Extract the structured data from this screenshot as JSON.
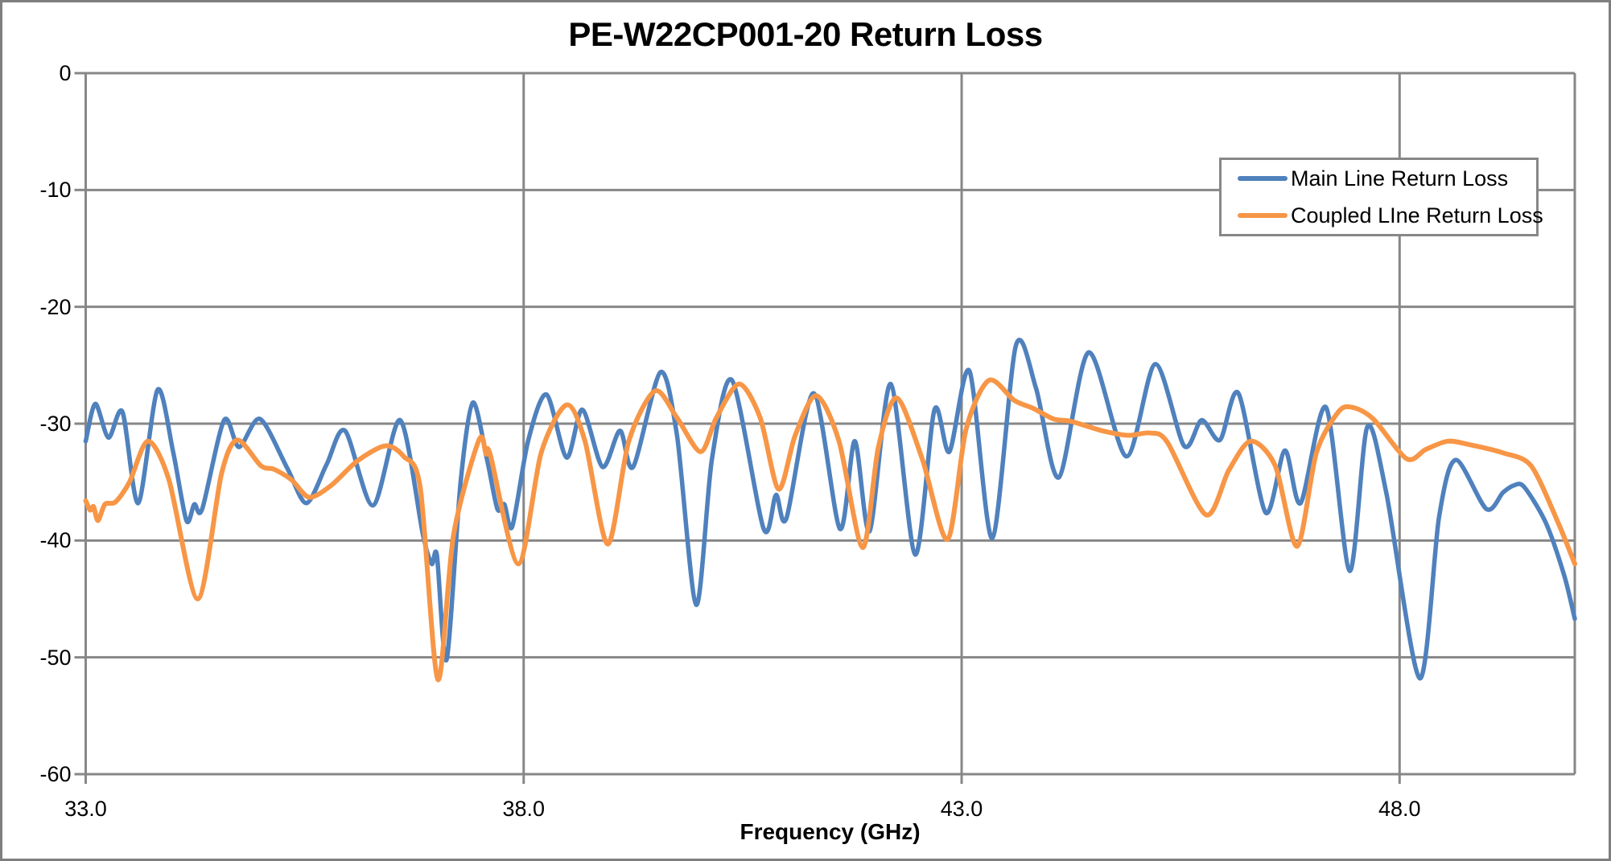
{
  "title": "PE-W22CP001-20 Return Loss",
  "colors": {
    "main_line": "#4F81BD",
    "coupled_line": "#F79646",
    "gridline": "#878787",
    "outer_border": "#7F7F7F",
    "text": "#000000",
    "background": "#FFFFFF"
  },
  "axes": {
    "x_label": "Frequency (GHz)",
    "x_ticks": [
      {
        "label": "33.0",
        "value": 33.0
      },
      {
        "label": "38.0",
        "value": 38.0
      },
      {
        "label": "43.0",
        "value": 43.0
      },
      {
        "label": "48.0",
        "value": 48.0
      }
    ],
    "y_ticks": [
      {
        "label": "0",
        "value": 0
      },
      {
        "label": "-10",
        "value": -10
      },
      {
        "label": "-20",
        "value": -20
      },
      {
        "label": "-30",
        "value": -30
      },
      {
        "label": "-40",
        "value": -40
      },
      {
        "label": "-50",
        "value": -50
      },
      {
        "label": "-60",
        "value": -60
      }
    ]
  },
  "legend": {
    "entries": [
      {
        "label": "Main Line Return Loss",
        "series": "main_line"
      },
      {
        "label": "Coupled LIne Return Loss",
        "series": "coupled_line"
      }
    ]
  },
  "chart_data": {
    "type": "line",
    "title": "PE-W22CP001-20 Return Loss",
    "xlabel": "Frequency (GHz)",
    "ylabel": "",
    "x_range": [
      33.0,
      50.0
    ],
    "ylim": [
      -60,
      0
    ],
    "x_major_step": 5.0,
    "y_major_step": 10,
    "grid": true,
    "legend_position": "top-right-inside",
    "x_units": "GHz",
    "y_units": "dB",
    "series": [
      {
        "name": "Main Line Return Loss",
        "color_key": "main_line",
        "stroke_width": 5.5,
        "points": [
          [
            33.0,
            -31.5
          ],
          [
            33.11,
            -28.3
          ],
          [
            33.26,
            -31.2
          ],
          [
            33.42,
            -29.0
          ],
          [
            33.6,
            -36.8
          ],
          [
            33.82,
            -27.1
          ],
          [
            34.0,
            -32.5
          ],
          [
            34.15,
            -38.3
          ],
          [
            34.24,
            -36.9
          ],
          [
            34.33,
            -37.3
          ],
          [
            34.58,
            -29.7
          ],
          [
            34.75,
            -32.0
          ],
          [
            34.99,
            -29.6
          ],
          [
            35.3,
            -33.8
          ],
          [
            35.52,
            -36.8
          ],
          [
            35.75,
            -33.5
          ],
          [
            35.96,
            -30.6
          ],
          [
            36.28,
            -37.0
          ],
          [
            36.59,
            -29.7
          ],
          [
            36.85,
            -39.5
          ],
          [
            36.95,
            -42.0
          ],
          [
            37.01,
            -41.3
          ],
          [
            37.12,
            -50.2
          ],
          [
            37.28,
            -35.0
          ],
          [
            37.42,
            -28.2
          ],
          [
            37.58,
            -33.0
          ],
          [
            37.7,
            -37.3
          ],
          [
            37.78,
            -36.9
          ],
          [
            37.87,
            -38.8
          ],
          [
            38.05,
            -31.5
          ],
          [
            38.26,
            -27.5
          ],
          [
            38.49,
            -32.9
          ],
          [
            38.67,
            -28.8
          ],
          [
            38.9,
            -33.7
          ],
          [
            39.1,
            -30.6
          ],
          [
            39.25,
            -33.7
          ],
          [
            39.56,
            -25.6
          ],
          [
            39.75,
            -31.0
          ],
          [
            39.97,
            -45.5
          ],
          [
            40.15,
            -33.0
          ],
          [
            40.38,
            -26.3
          ],
          [
            40.74,
            -39.0
          ],
          [
            40.88,
            -36.1
          ],
          [
            41.0,
            -38.1
          ],
          [
            41.31,
            -27.4
          ],
          [
            41.61,
            -39.0
          ],
          [
            41.78,
            -31.5
          ],
          [
            41.95,
            -39.2
          ],
          [
            42.19,
            -26.6
          ],
          [
            42.47,
            -41.2
          ],
          [
            42.69,
            -28.8
          ],
          [
            42.86,
            -32.4
          ],
          [
            43.09,
            -25.5
          ],
          [
            43.35,
            -39.8
          ],
          [
            43.62,
            -23.3
          ],
          [
            43.85,
            -27.0
          ],
          [
            44.11,
            -34.6
          ],
          [
            44.45,
            -23.9
          ],
          [
            44.88,
            -32.8
          ],
          [
            45.21,
            -24.9
          ],
          [
            45.54,
            -31.9
          ],
          [
            45.74,
            -29.7
          ],
          [
            45.95,
            -31.4
          ],
          [
            46.16,
            -27.4
          ],
          [
            46.47,
            -37.6
          ],
          [
            46.69,
            -32.3
          ],
          [
            46.87,
            -36.8
          ],
          [
            47.16,
            -28.6
          ],
          [
            47.43,
            -42.6
          ],
          [
            47.63,
            -30.3
          ],
          [
            47.85,
            -36.0
          ],
          [
            48.23,
            -51.8
          ],
          [
            48.45,
            -38.0
          ],
          [
            48.64,
            -33.1
          ],
          [
            48.99,
            -37.3
          ],
          [
            49.18,
            -35.9
          ],
          [
            49.3,
            -35.3
          ],
          [
            49.42,
            -35.4
          ],
          [
            49.67,
            -38.5
          ],
          [
            49.88,
            -43.0
          ],
          [
            50.0,
            -46.7
          ]
        ]
      },
      {
        "name": "Coupled LIne Return Loss",
        "color_key": "coupled_line",
        "stroke_width": 6,
        "points": [
          [
            33.0,
            -36.6
          ],
          [
            33.05,
            -37.4
          ],
          [
            33.09,
            -37.1
          ],
          [
            33.14,
            -38.3
          ],
          [
            33.22,
            -36.9
          ],
          [
            33.34,
            -36.7
          ],
          [
            33.5,
            -35.0
          ],
          [
            33.71,
            -31.5
          ],
          [
            33.95,
            -34.8
          ],
          [
            34.28,
            -45.0
          ],
          [
            34.55,
            -34.3
          ],
          [
            34.73,
            -31.4
          ],
          [
            35.0,
            -33.6
          ],
          [
            35.15,
            -33.9
          ],
          [
            35.35,
            -34.8
          ],
          [
            35.55,
            -36.3
          ],
          [
            35.8,
            -35.3
          ],
          [
            36.1,
            -33.2
          ],
          [
            36.42,
            -31.9
          ],
          [
            36.63,
            -32.8
          ],
          [
            36.82,
            -35.5
          ],
          [
            37.02,
            -51.9
          ],
          [
            37.2,
            -39.5
          ],
          [
            37.49,
            -31.4
          ],
          [
            37.57,
            -32.6
          ],
          [
            37.62,
            -32.7
          ],
          [
            37.94,
            -42.0
          ],
          [
            38.2,
            -32.5
          ],
          [
            38.49,
            -28.4
          ],
          [
            38.7,
            -31.5
          ],
          [
            38.96,
            -40.3
          ],
          [
            39.2,
            -31.5
          ],
          [
            39.5,
            -27.2
          ],
          [
            39.75,
            -29.5
          ],
          [
            40.02,
            -32.4
          ],
          [
            40.2,
            -29.5
          ],
          [
            40.46,
            -26.6
          ],
          [
            40.7,
            -29.5
          ],
          [
            40.91,
            -35.6
          ],
          [
            41.1,
            -31.0
          ],
          [
            41.34,
            -27.6
          ],
          [
            41.6,
            -31.5
          ],
          [
            41.87,
            -40.6
          ],
          [
            42.05,
            -32.0
          ],
          [
            42.26,
            -27.8
          ],
          [
            42.55,
            -33.0
          ],
          [
            42.84,
            -39.9
          ],
          [
            43.05,
            -30.5
          ],
          [
            43.31,
            -26.3
          ],
          [
            43.6,
            -28.0
          ],
          [
            43.82,
            -28.7
          ],
          [
            44.05,
            -29.6
          ],
          [
            44.25,
            -29.8
          ],
          [
            44.6,
            -30.6
          ],
          [
            44.9,
            -31.0
          ],
          [
            45.15,
            -30.8
          ],
          [
            45.35,
            -31.6
          ],
          [
            45.79,
            -37.8
          ],
          [
            46.05,
            -34.0
          ],
          [
            46.3,
            -31.5
          ],
          [
            46.58,
            -33.6
          ],
          [
            46.83,
            -40.5
          ],
          [
            47.05,
            -32.5
          ],
          [
            47.3,
            -29.0
          ],
          [
            47.46,
            -28.6
          ],
          [
            47.7,
            -29.6
          ],
          [
            48.08,
            -33.0
          ],
          [
            48.3,
            -32.2
          ],
          [
            48.55,
            -31.5
          ],
          [
            48.8,
            -31.8
          ],
          [
            49.18,
            -32.5
          ],
          [
            49.5,
            -33.6
          ],
          [
            49.8,
            -38.3
          ],
          [
            50.0,
            -42.0
          ]
        ]
      }
    ]
  }
}
